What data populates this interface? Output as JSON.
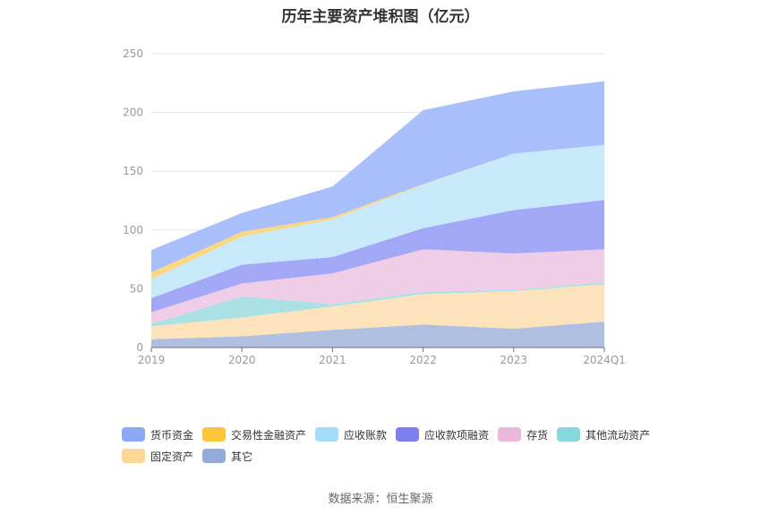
{
  "chart_data": {
    "type": "area",
    "stacked": true,
    "title": "历年主要资产堆积图（亿元）",
    "x": [
      "2019",
      "2020",
      "2021",
      "2022",
      "2023",
      "2024Q1"
    ],
    "ylim": [
      0,
      250
    ],
    "yticks": [
      0,
      50,
      100,
      150,
      200,
      250
    ],
    "grid": true,
    "legend_position": "bottom",
    "series": [
      {
        "name": "其它",
        "color": "#aebfe0",
        "values": [
          7,
          9.5,
          15,
          19.5,
          16,
          22
        ]
      },
      {
        "name": "固定资产",
        "color": "#fde3bb",
        "values": [
          11,
          16,
          20,
          26,
          32,
          32
        ]
      },
      {
        "name": "其他流动资产",
        "color": "#a9e1e4",
        "values": [
          2,
          18,
          2,
          2,
          1,
          1.5
        ]
      },
      {
        "name": "存货",
        "color": "#f0cde6",
        "values": [
          10,
          11,
          26,
          36,
          31,
          28
        ]
      },
      {
        "name": "应收款项融资",
        "color": "#a2a8f5",
        "values": [
          12,
          16,
          14,
          18,
          37,
          42
        ]
      },
      {
        "name": "应收账款",
        "color": "#c7e9fa",
        "values": [
          16,
          24,
          32,
          37,
          48,
          47
        ]
      },
      {
        "name": "交易性金融资产",
        "color": "#fdd880",
        "values": [
          6,
          4,
          2,
          0.5,
          0,
          0
        ]
      },
      {
        "name": "货币资金",
        "color": "#a8bffc",
        "values": [
          19,
          16,
          26,
          63,
          53,
          54
        ]
      }
    ]
  },
  "legend": [
    {
      "label": "货币资金",
      "color": "#8ca9f8"
    },
    {
      "label": "交易性金融资产",
      "color": "#fdc53b"
    },
    {
      "label": "应收账款",
      "color": "#a4dcf9"
    },
    {
      "label": "应收款项融资",
      "color": "#7b80ee"
    },
    {
      "label": "存货",
      "color": "#ebb8dc"
    },
    {
      "label": "其他流动资产",
      "color": "#86d8dc"
    },
    {
      "label": "固定资产",
      "color": "#fdd798"
    },
    {
      "label": "其它",
      "color": "#93abd9"
    }
  ],
  "source": "数据来源：恒生聚源"
}
